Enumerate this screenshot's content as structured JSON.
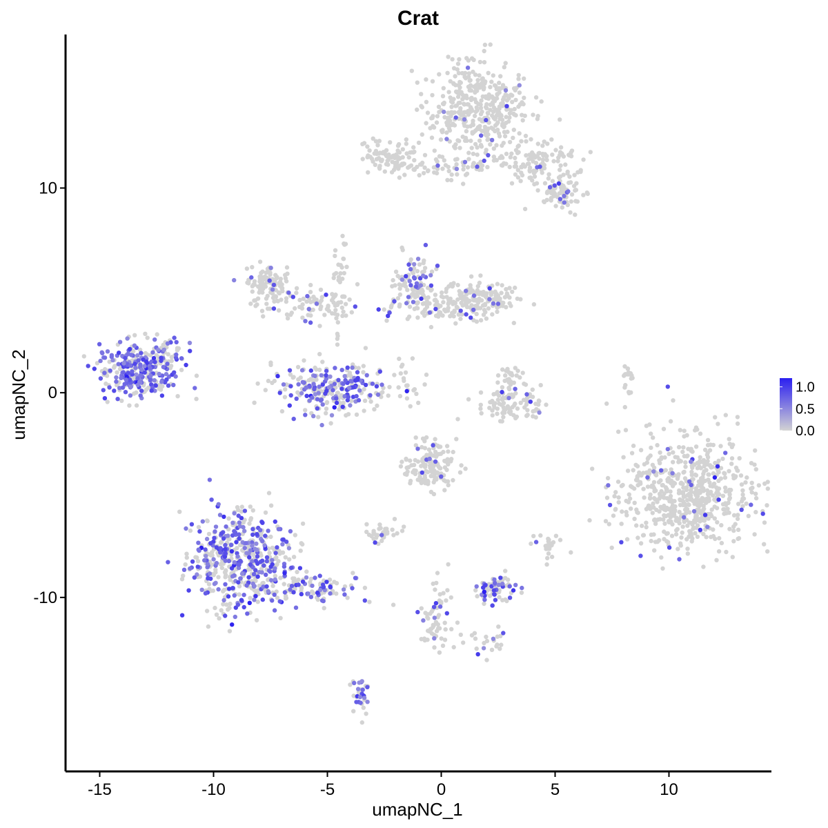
{
  "chart_data": {
    "type": "scatter",
    "title": "Crat",
    "xlabel": "umapNC_1",
    "ylabel": "umapNC_2",
    "xlim": [
      -16.5,
      14.5
    ],
    "ylim": [
      -18.5,
      17.5
    ],
    "x_ticks": [
      -15,
      -10,
      -5,
      0,
      5,
      10
    ],
    "y_ticks": [
      -10,
      0,
      10
    ],
    "x_tick_labels": [
      "-15",
      "-10",
      "-5",
      "0",
      "5",
      "10"
    ],
    "y_tick_labels": [
      "-10",
      "0",
      "10"
    ],
    "grid": false,
    "colors": {
      "low": "#d3d3d3",
      "high": "#2b1ff0"
    },
    "legend": {
      "position": "right",
      "min": 0,
      "max": 1.2,
      "ticks": [
        1.0,
        0.5,
        0.0
      ],
      "tick_labels": [
        "1.0",
        "0.5",
        "0.0"
      ]
    },
    "clusters": [
      {
        "cx": 1.6,
        "cy": 13.8,
        "sx": 1.1,
        "sy": 1.2,
        "n": 420,
        "expr_frac": 0.02
      },
      {
        "cx": -2.2,
        "cy": 11.4,
        "sx": 0.6,
        "sy": 0.4,
        "n": 90,
        "expr_frac": 0.06
      },
      {
        "cx": 0.5,
        "cy": 11.1,
        "sx": 1.2,
        "sy": 0.25,
        "n": 60,
        "expr_frac": 0.06
      },
      {
        "cx": 4.2,
        "cy": 11.2,
        "sx": 1.0,
        "sy": 0.5,
        "n": 110,
        "expr_frac": 0.04
      },
      {
        "cx": 5.3,
        "cy": 9.7,
        "sx": 0.5,
        "sy": 0.4,
        "n": 70,
        "expr_frac": 0.1
      },
      {
        "cx": -7.6,
        "cy": 5.3,
        "sx": 0.5,
        "sy": 0.5,
        "n": 110,
        "expr_frac": 0.03
      },
      {
        "cx": -5.5,
        "cy": 4.3,
        "sx": 1.0,
        "sy": 0.4,
        "n": 70,
        "expr_frac": 0.1
      },
      {
        "cx": -1.2,
        "cy": 5.4,
        "sx": 0.45,
        "sy": 0.7,
        "n": 90,
        "expr_frac": 0.3
      },
      {
        "cx": 1.7,
        "cy": 4.5,
        "sx": 0.8,
        "sy": 0.45,
        "n": 150,
        "expr_frac": 0.04
      },
      {
        "cx": -0.6,
        "cy": 4.2,
        "sx": 0.9,
        "sy": 0.45,
        "n": 80,
        "expr_frac": 0.12
      },
      {
        "cx": -13.3,
        "cy": 1.1,
        "sx": 0.9,
        "sy": 0.65,
        "n": 300,
        "expr_frac": 0.55
      },
      {
        "cx": -5.0,
        "cy": 0.2,
        "sx": 1.2,
        "sy": 0.6,
        "n": 260,
        "expr_frac": 0.45
      },
      {
        "cx": 3.2,
        "cy": -0.6,
        "sx": 0.8,
        "sy": 0.4,
        "n": 90,
        "expr_frac": 0.1
      },
      {
        "cx": 10.8,
        "cy": -5.0,
        "sx": 1.5,
        "sy": 1.4,
        "n": 650,
        "expr_frac": 0.03
      },
      {
        "cx": -0.5,
        "cy": -3.6,
        "sx": 0.6,
        "sy": 0.55,
        "n": 140,
        "expr_frac": 0.08
      },
      {
        "cx": -8.8,
        "cy": -8.2,
        "sx": 1.1,
        "sy": 1.3,
        "n": 520,
        "expr_frac": 0.4
      },
      {
        "cx": -5.5,
        "cy": -9.5,
        "sx": 1.2,
        "sy": 0.4,
        "n": 100,
        "expr_frac": 0.35
      },
      {
        "cx": -2.6,
        "cy": -6.8,
        "sx": 0.4,
        "sy": 0.25,
        "n": 35,
        "expr_frac": 0.1
      },
      {
        "cx": 2.3,
        "cy": -9.6,
        "sx": 0.5,
        "sy": 0.3,
        "n": 80,
        "expr_frac": 0.35
      },
      {
        "cx": -0.3,
        "cy": -11.0,
        "sx": 0.3,
        "sy": 0.9,
        "n": 60,
        "expr_frac": 0.1
      },
      {
        "cx": 1.9,
        "cy": -12.3,
        "sx": 0.6,
        "sy": 0.3,
        "n": 25,
        "expr_frac": 0.1
      },
      {
        "cx": -3.5,
        "cy": -14.7,
        "sx": 0.2,
        "sy": 0.5,
        "n": 35,
        "expr_frac": 0.45
      },
      {
        "cx": 4.7,
        "cy": -7.5,
        "sx": 0.3,
        "sy": 0.3,
        "n": 25,
        "expr_frac": 0.1
      },
      {
        "cx": 8.2,
        "cy": 0.5,
        "sx": 0.15,
        "sy": 0.6,
        "n": 20,
        "expr_frac": 0.0
      },
      {
        "cx": -4.4,
        "cy": 5.2,
        "sx": 0.2,
        "sy": 1.2,
        "n": 35,
        "expr_frac": 0.0
      },
      {
        "cx": -1.8,
        "cy": 0.5,
        "sx": 0.5,
        "sy": 0.6,
        "n": 25,
        "expr_frac": 0.0
      },
      {
        "cx": 3.0,
        "cy": 0.8,
        "sx": 0.3,
        "sy": 0.5,
        "n": 30,
        "expr_frac": 0.05
      },
      {
        "cx": -12.0,
        "cy": 2.0,
        "sx": 0.4,
        "sy": 0.5,
        "n": 30,
        "expr_frac": 0.3
      }
    ]
  }
}
